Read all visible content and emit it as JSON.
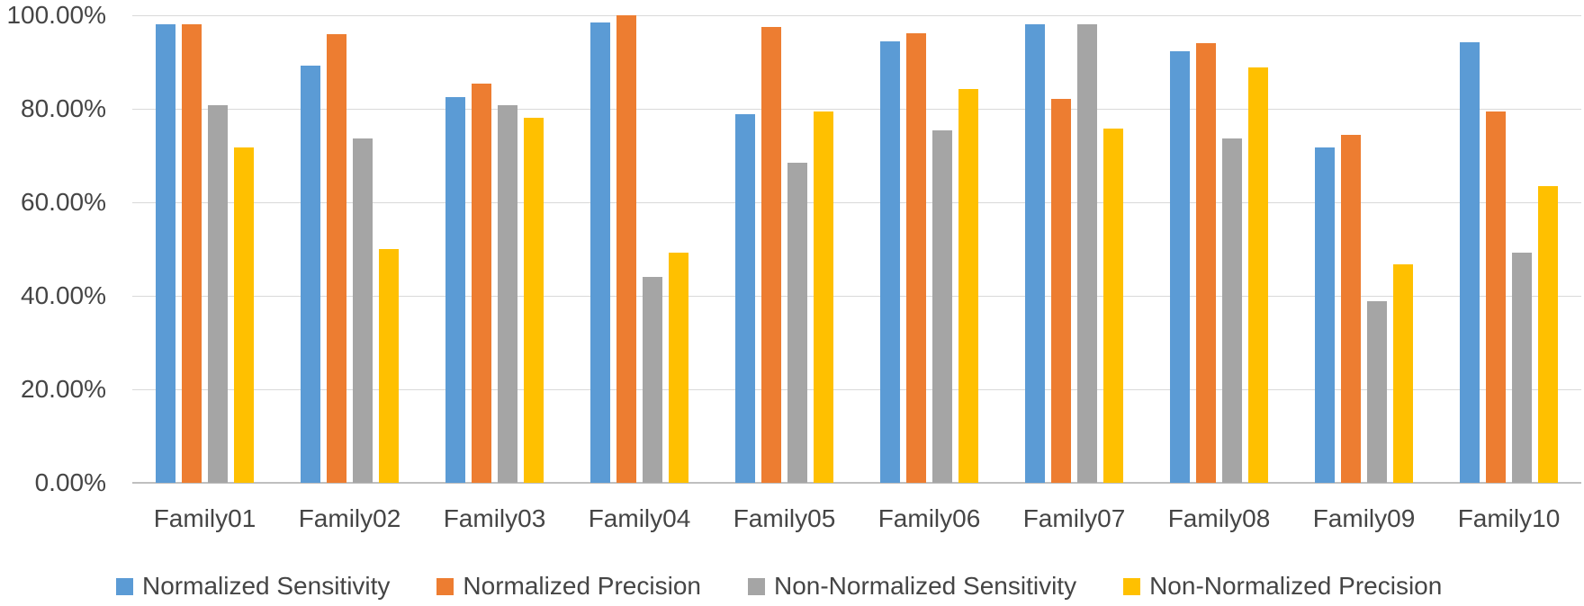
{
  "chart_data": {
    "type": "bar",
    "title": "",
    "categories": [
      "Family01",
      "Family02",
      "Family03",
      "Family04",
      "Family05",
      "Family06",
      "Family07",
      "Family08",
      "Family09",
      "Family10"
    ],
    "series": [
      {
        "name": "Normalized Sensitivity",
        "color": "#5B9BD5",
        "values": [
          98.0,
          89.3,
          82.5,
          98.5,
          78.9,
          94.4,
          98.0,
          92.4,
          71.8,
          94.3
        ]
      },
      {
        "name": "Normalized Precision",
        "color": "#ED7D31",
        "values": [
          98.0,
          96.0,
          85.4,
          100.0,
          97.5,
          96.2,
          82.2,
          94.0,
          74.4,
          79.4
        ]
      },
      {
        "name": "Non-Normalized Sensitivity",
        "color": "#A5A5A5",
        "values": [
          80.7,
          73.7,
          80.7,
          44.0,
          68.4,
          75.3,
          98.0,
          73.7,
          38.8,
          49.2
        ]
      },
      {
        "name": "Non-Normalized Precision",
        "color": "#FFC000",
        "values": [
          71.8,
          50.0,
          78.0,
          49.2,
          79.4,
          84.2,
          75.7,
          88.8,
          46.8,
          63.5
        ]
      }
    ],
    "y_axis": {
      "min": 0,
      "max": 100,
      "tick_values": [
        0,
        20,
        40,
        60,
        80,
        100
      ],
      "ticks": [
        "0.00%",
        "20.00%",
        "40.00%",
        "60.00%",
        "80.00%",
        "100.00%"
      ],
      "grid": true
    },
    "legend_position": "bottom"
  },
  "style": {
    "grid_color": "#D9D9D9",
    "axis_line_color": "#BFBFBF",
    "text_color": "#454545",
    "background": "#FFFFFF"
  }
}
